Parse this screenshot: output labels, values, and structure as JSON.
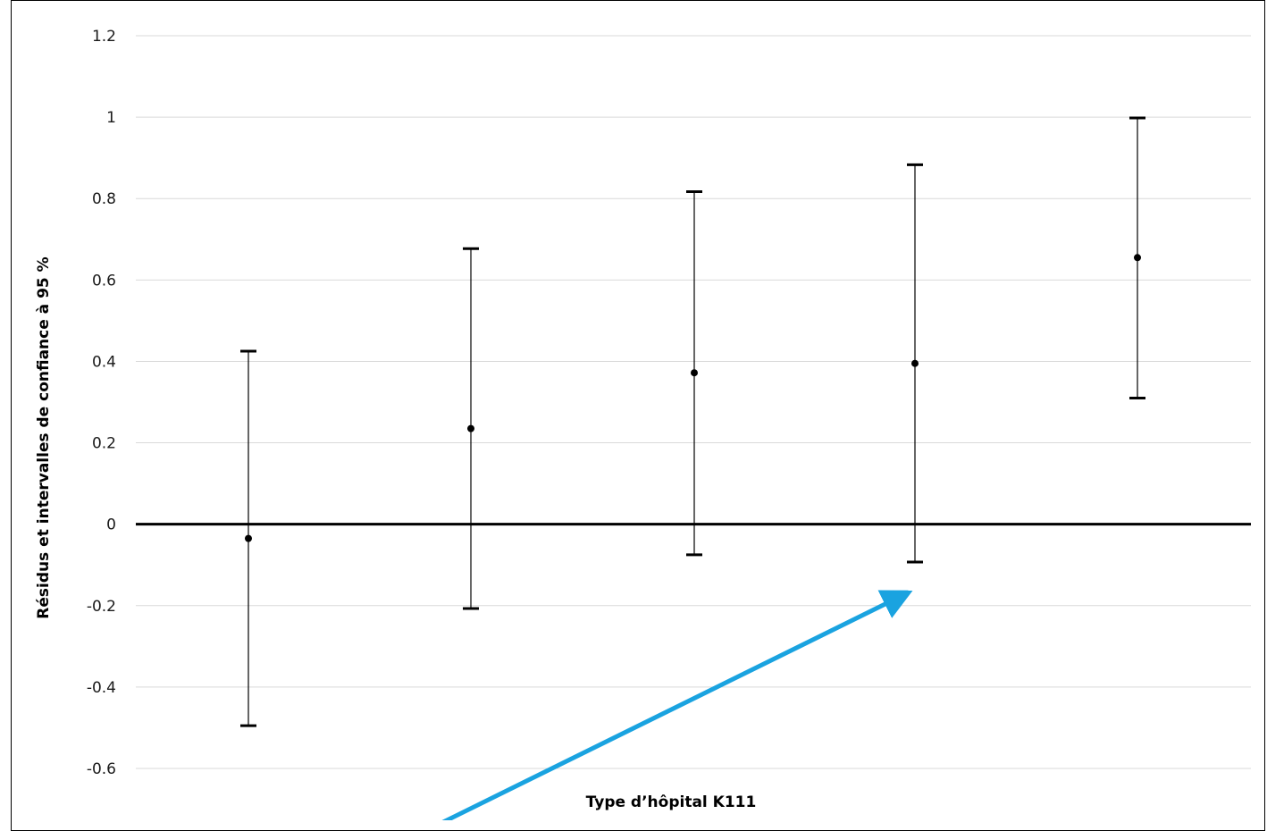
{
  "chart_data": {
    "type": "scatter",
    "subtype": "error-bar",
    "title": "",
    "xlabel": "Type d’hôpital K111",
    "ylabel": "Résidus et intervalles de confiance à 95 %",
    "ylim": [
      -0.6,
      1.2
    ],
    "yticks": [
      "1.2",
      "1",
      "0.8",
      "0.6",
      "0.4",
      "0.2",
      "0",
      "-0.2",
      "-0.4",
      "-0.6"
    ],
    "grid": true,
    "legend": "none",
    "points": [
      {
        "x": 1,
        "y": -0.035,
        "lower": -0.495,
        "upper": 0.425
      },
      {
        "x": 2,
        "y": 0.235,
        "lower": -0.207,
        "upper": 0.677
      },
      {
        "x": 3,
        "y": 0.372,
        "lower": -0.075,
        "upper": 0.817
      },
      {
        "x": 4,
        "y": 0.395,
        "lower": -0.093,
        "upper": 0.883
      },
      {
        "x": 5,
        "y": 0.655,
        "lower": 0.31,
        "upper": 0.998
      }
    ],
    "reference_line": {
      "y": 0
    },
    "annotation": {
      "type": "arrow",
      "color": "#1aa3e0"
    },
    "colors": {
      "points": "#000000",
      "grid": "#d9d9d9",
      "arrow": "#1aa3e0"
    }
  }
}
